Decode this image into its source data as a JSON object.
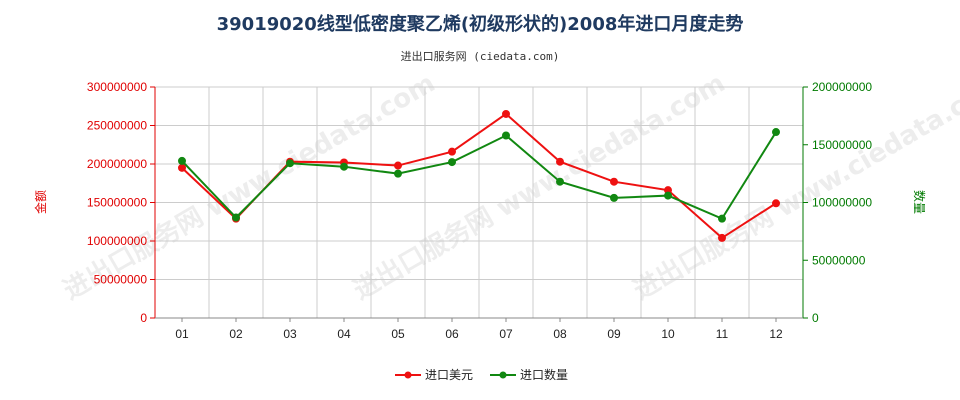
{
  "title": "39019020线型低密度聚乙烯(初级形状的)2008年进口月度走势",
  "subtitle": "进出口服务网 (ciedata.com)",
  "watermark": "进出口服务网 www.ciedata.com",
  "colors": {
    "left_axis": "#e00000",
    "right_axis": "#007a00",
    "series_value": "#ee1111",
    "series_quantity": "#118811",
    "grid": "#cccccc",
    "title": "#1f3a60"
  },
  "chart_data": {
    "type": "line",
    "categories": [
      "01",
      "02",
      "03",
      "04",
      "05",
      "06",
      "07",
      "08",
      "09",
      "10",
      "11",
      "12"
    ],
    "left_axis": {
      "label": "金额",
      "min": 0,
      "max": 300000000,
      "ticks": [
        "0",
        "50000000",
        "100000000",
        "150000000",
        "200000000",
        "250000000",
        "300000000"
      ]
    },
    "right_axis": {
      "label": "数量",
      "min": 0,
      "max": 200000000,
      "ticks": [
        "0",
        "50000000",
        "100000000",
        "150000000",
        "200000000"
      ]
    },
    "series": [
      {
        "name": "进口美元",
        "axis": "left",
        "values": [
          195000000,
          129000000,
          203000000,
          202000000,
          198000000,
          216000000,
          265000000,
          203000000,
          177000000,
          166000000,
          104000000,
          149000000
        ]
      },
      {
        "name": "进口数量",
        "axis": "right",
        "values": [
          136000000,
          87000000,
          134000000,
          131000000,
          125000000,
          135000000,
          158000000,
          118000000,
          104000000,
          106000000,
          86000000,
          161000000
        ]
      }
    ],
    "grid": true,
    "legend": "bottom-center"
  }
}
